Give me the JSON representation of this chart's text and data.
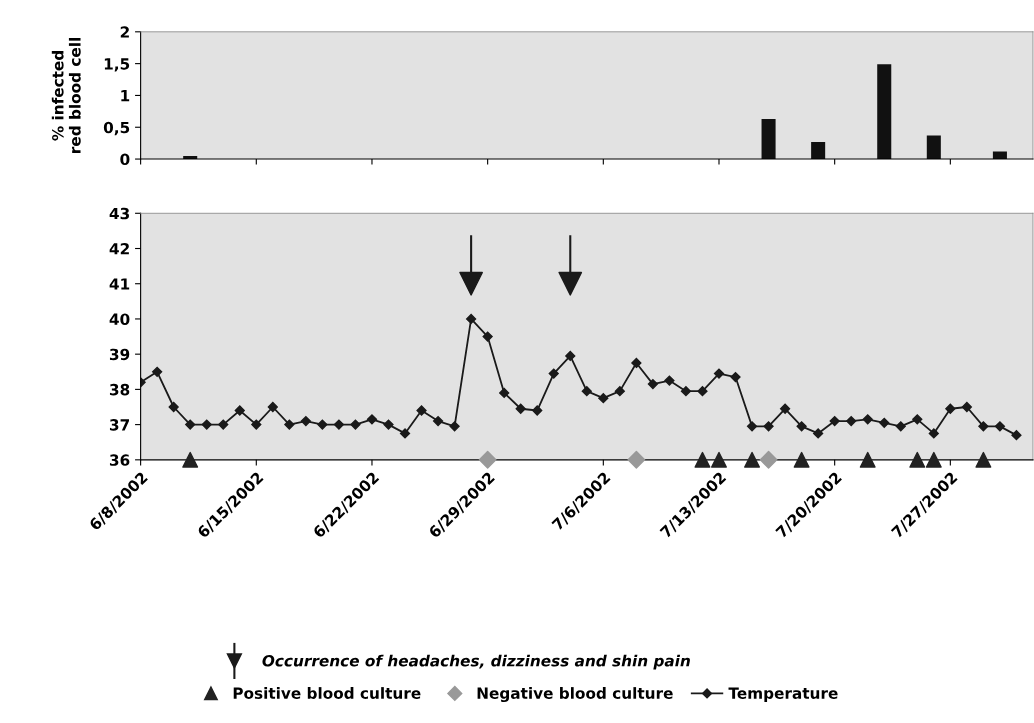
{
  "chart_data": [
    {
      "type": "bar",
      "ylabel": "% infected\nred blood cell",
      "color": "#111111",
      "x": [
        "2002-06-11",
        "2002-07-16",
        "2002-07-19",
        "2002-07-23",
        "2002-07-26",
        "2002-07-30"
      ],
      "values": [
        0.05,
        0.63,
        0.27,
        1.49,
        0.37,
        0.12
      ],
      "ylim": [
        0,
        2
      ],
      "yticks": [
        0,
        {
          "value": 0.5,
          "label": "0,5"
        },
        1,
        {
          "value": 1.5,
          "label": "1,5"
        },
        2
      ],
      "xlim": [
        "2002-06-08",
        "2002-08-01"
      ],
      "xticks": [
        {
          "value": "2002-06-08",
          "label": null
        },
        {
          "value": "2002-06-15",
          "label": null
        },
        {
          "value": "2002-06-22",
          "label": null
        },
        {
          "value": "2002-06-29",
          "label": null
        },
        {
          "value": "2002-07-06",
          "label": null
        },
        {
          "value": "2002-07-13",
          "label": null
        },
        {
          "value": "2002-07-20",
          "label": null
        },
        {
          "value": "2002-07-27",
          "label": null
        }
      ],
      "tick_labels": "y"
    },
    {
      "type": "line",
      "legend": "bottom",
      "xlim": [
        "2002-06-08",
        "2002-08-01"
      ],
      "xticks": [
        {
          "value": "2002-06-08",
          "label": "6/8/2002"
        },
        {
          "value": "2002-06-15",
          "label": "6/15/2002"
        },
        {
          "value": "2002-06-22",
          "label": "6/22/2002"
        },
        {
          "value": "2002-06-29",
          "label": "6/29/2002"
        },
        {
          "value": "2002-07-06",
          "label": "7/6/2002"
        },
        {
          "value": "2002-07-13",
          "label": "7/13/2002"
        },
        {
          "value": "2002-07-20",
          "label": "7/20/2002"
        },
        {
          "value": "2002-07-27",
          "label": "7/27/2002"
        }
      ],
      "ylim": [
        36,
        43
      ],
      "yticks": [
        36,
        37,
        38,
        39,
        40,
        41,
        42,
        43
      ],
      "series": [
        {
          "name": "Occurrence of headaches, dizziness and shin pain",
          "type": "scatter",
          "marker": "triangle",
          "color": "#1a1a1a",
          "x": [
            "2002-06-28",
            "2002-07-04"
          ],
          "values": [
            41.0,
            41.0
          ]
        },
        {
          "name": "Positive blood culture",
          "type": "scatter",
          "marker": "triangle",
          "color": "#222222",
          "x": [
            "2002-06-11",
            "2002-07-12",
            "2002-07-13",
            "2002-07-15",
            "2002-07-18",
            "2002-07-22",
            "2002-07-25",
            "2002-07-26",
            "2002-07-29"
          ],
          "values": [
            36,
            36,
            36,
            36,
            36,
            36,
            36,
            36,
            36
          ]
        },
        {
          "name": "Negative blood culture",
          "type": "scatter",
          "marker": "diamond",
          "color": "#999999",
          "x": [
            "2002-06-29",
            "2002-07-08",
            "2002-07-16"
          ],
          "values": [
            36,
            36,
            36
          ]
        },
        {
          "name": "Temperature",
          "type": "line",
          "marker": "diamond",
          "color": "#1a1a1a",
          "x": [
            "2002-06-08",
            "2002-06-09",
            "2002-06-10",
            "2002-06-11",
            "2002-06-12",
            "2002-06-13",
            "2002-06-14",
            "2002-06-15",
            "2002-06-16",
            "2002-06-17",
            "2002-06-18",
            "2002-06-19",
            "2002-06-20",
            "2002-06-21",
            "2002-06-22",
            "2002-06-23",
            "2002-06-24",
            "2002-06-25",
            "2002-06-26",
            "2002-06-27",
            "2002-06-28",
            "2002-06-29",
            "2002-06-30",
            "2002-07-01",
            "2002-07-02",
            "2002-07-03",
            "2002-07-04",
            "2002-07-05",
            "2002-07-06",
            "2002-07-07",
            "2002-07-08",
            "2002-07-09",
            "2002-07-10",
            "2002-07-11",
            "2002-07-12",
            "2002-07-13",
            "2002-07-14",
            "2002-07-15",
            "2002-07-16",
            "2002-07-17",
            "2002-07-18",
            "2002-07-19",
            "2002-07-20",
            "2002-07-21",
            "2002-07-22",
            "2002-07-23",
            "2002-07-24",
            "2002-07-25",
            "2002-07-26",
            "2002-07-27",
            "2002-07-28",
            "2002-07-29",
            "2002-07-30",
            "2002-07-31"
          ],
          "values": [
            38.2,
            38.5,
            37.5,
            37.0,
            37.0,
            37.0,
            37.4,
            37.0,
            37.5,
            37.0,
            37.1,
            37.0,
            37.0,
            37.0,
            37.15,
            37.0,
            36.75,
            37.4,
            37.1,
            36.95,
            40.0,
            39.5,
            37.9,
            37.45,
            37.4,
            38.45,
            38.95,
            37.95,
            37.75,
            37.95,
            38.75,
            38.15,
            38.25,
            37.95,
            37.95,
            38.45,
            38.35,
            36.95,
            36.95,
            37.45,
            36.95,
            36.75,
            37.1,
            37.1,
            37.15,
            37.05,
            36.95,
            37.15,
            36.75,
            37.45,
            37.5,
            36.95,
            36.95,
            36.7
          ]
        }
      ]
    }
  ]
}
